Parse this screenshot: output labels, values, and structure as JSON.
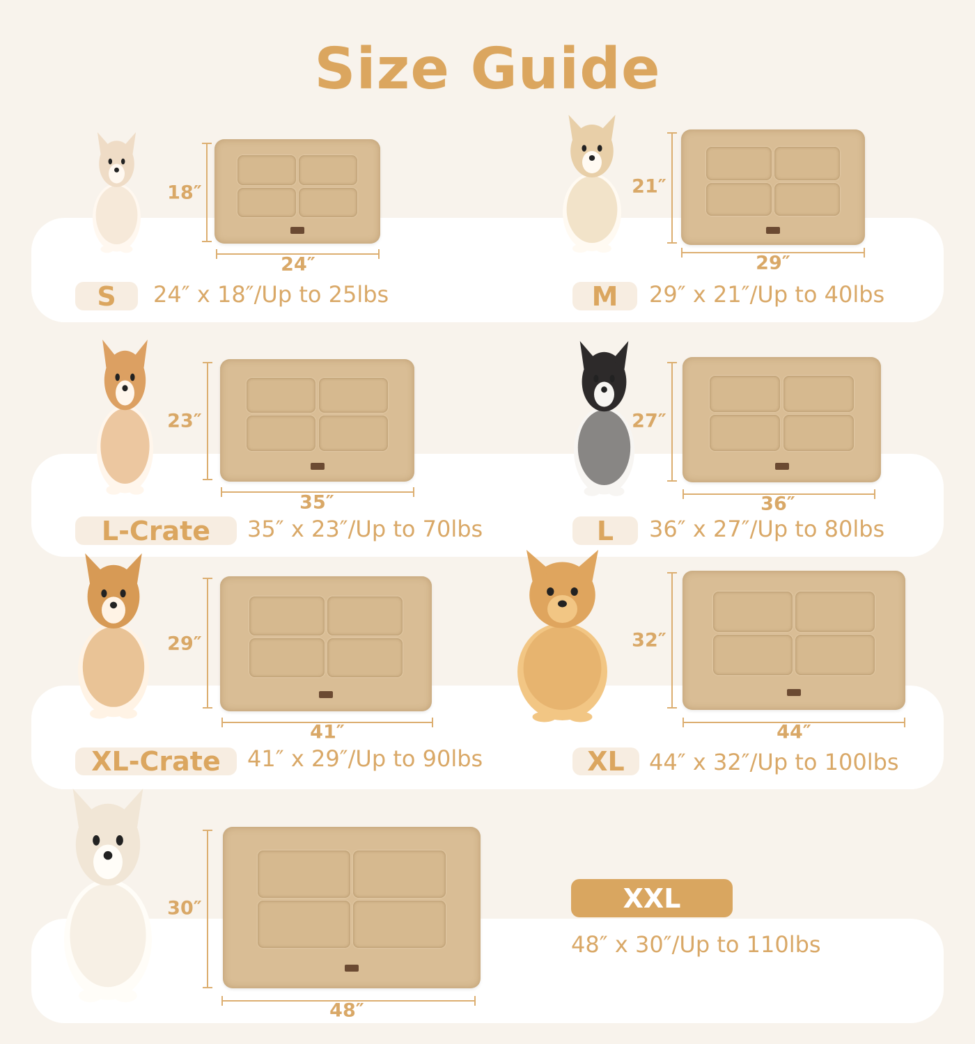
{
  "title": "Size Guide",
  "colors": {
    "accent": "#dba65f",
    "background": "#f8f3ec",
    "band": "#ffffff",
    "mat": "#d9bd95"
  },
  "sizes": [
    {
      "label": "S",
      "width": "24″",
      "height": "18″",
      "description": "24″ x 18″/Up to 25lbs",
      "dog": "chihuahua"
    },
    {
      "label": "M",
      "width": "29″",
      "height": "21″",
      "description": "29″ x 21″/Up to 40lbs",
      "dog": "fluffy-puppy"
    },
    {
      "label": "L-Crate",
      "width": "35″",
      "height": "23″",
      "description": "35″ x 23″/Up to 70lbs",
      "dog": "corgi"
    },
    {
      "label": "L",
      "width": "36″",
      "height": "27″",
      "description": "36″ x 27″/Up to 80lbs",
      "dog": "border-collie"
    },
    {
      "label": "XL-Crate",
      "width": "41″",
      "height": "29″",
      "description": "41″ x 29″/Up to 90lbs",
      "dog": "shiba-inu"
    },
    {
      "label": "XL",
      "width": "44″",
      "height": "32″",
      "description": "44″ x 32″/Up to 100lbs",
      "dog": "golden-retriever"
    },
    {
      "label": "XXL",
      "width": "48″",
      "height": "30″",
      "description": "48″ x 30″/Up to 110lbs",
      "dog": "white-golden-retriever"
    }
  ]
}
